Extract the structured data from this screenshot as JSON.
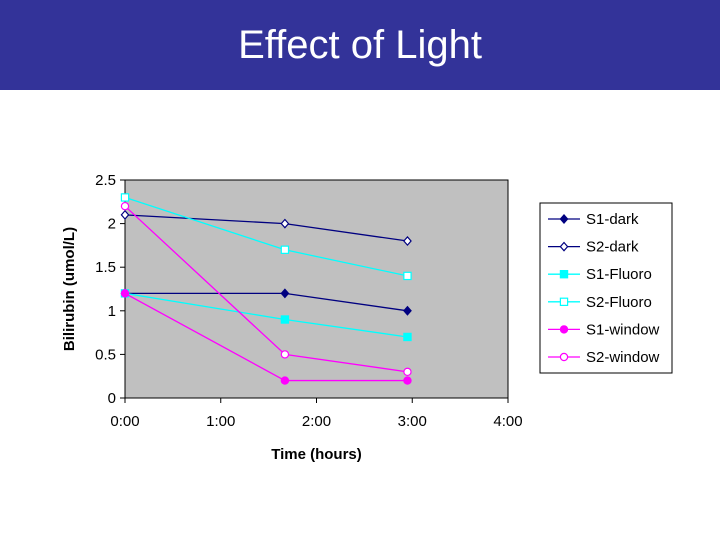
{
  "page": {
    "title": "Effect of Light"
  },
  "chart_data": {
    "type": "line",
    "title": "",
    "xlabel": "Time (hours)",
    "ylabel": "Bilirubin (umol/L)",
    "xlim": [
      0,
      4
    ],
    "ylim": [
      0,
      2.5
    ],
    "x_ticks": [
      "0:00",
      "1:00",
      "2:00",
      "3:00",
      "4:00"
    ],
    "y_ticks": [
      "0",
      "0.5",
      "1",
      "1.5",
      "2",
      "2.5"
    ],
    "plot_background": "#c0c0c0",
    "grid": false,
    "legend_position": "right",
    "series": [
      {
        "name": "S1-dark",
        "color": "#000080",
        "marker": "diamond",
        "filled": true,
        "x": [
          0,
          1.67,
          2.95
        ],
        "y": [
          1.2,
          1.2,
          1.0
        ]
      },
      {
        "name": "S2-dark",
        "color": "#000080",
        "marker": "diamond",
        "filled": false,
        "x": [
          0,
          1.67,
          2.95
        ],
        "y": [
          2.1,
          2.0,
          1.8
        ]
      },
      {
        "name": "S1-Fluoro",
        "color": "#00ffff",
        "marker": "square",
        "filled": true,
        "x": [
          0,
          1.67,
          2.95
        ],
        "y": [
          1.2,
          0.9,
          0.7
        ]
      },
      {
        "name": "S2-Fluoro",
        "color": "#00ffff",
        "marker": "square",
        "filled": false,
        "x": [
          0,
          1.67,
          2.95
        ],
        "y": [
          2.3,
          1.7,
          1.4
        ]
      },
      {
        "name": "S1-window",
        "color": "#ff00ff",
        "marker": "circle",
        "filled": true,
        "x": [
          0,
          1.67,
          2.95
        ],
        "y": [
          1.2,
          0.2,
          0.2
        ]
      },
      {
        "name": "S2-window",
        "color": "#ff00ff",
        "marker": "circle",
        "filled": false,
        "x": [
          0,
          1.67,
          2.95
        ],
        "y": [
          2.2,
          0.5,
          0.3
        ]
      }
    ]
  }
}
